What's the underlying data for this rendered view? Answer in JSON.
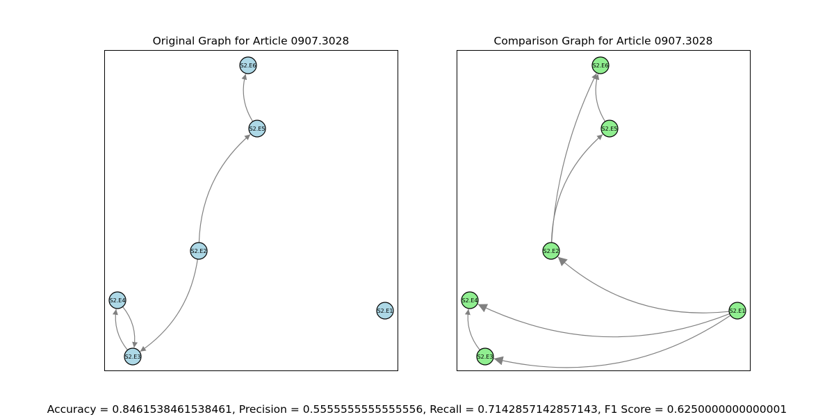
{
  "graphs": [
    {
      "id": "original",
      "title": "Original Graph for Article 0907.3028",
      "node_color": "#add8e6",
      "edge_color": "#808080",
      "nodes": [
        {
          "id": "S2.E1",
          "label": "S2.E1"
        },
        {
          "id": "S2.E2",
          "label": "S2.E2"
        },
        {
          "id": "S2.E3",
          "label": "S2.E3"
        },
        {
          "id": "S2.E4",
          "label": "S2.E4"
        },
        {
          "id": "S2.E5",
          "label": "S2.E5"
        },
        {
          "id": "S2.E6",
          "label": "S2.E6"
        }
      ],
      "edges": [
        {
          "source": "S2.E2",
          "target": "S2.E5"
        },
        {
          "source": "S2.E5",
          "target": "S2.E6"
        },
        {
          "source": "S2.E2",
          "target": "S2.E3"
        },
        {
          "source": "S2.E3",
          "target": "S2.E4"
        },
        {
          "source": "S2.E4",
          "target": "S2.E3"
        }
      ]
    },
    {
      "id": "comparison",
      "title": "Comparison Graph for Article 0907.3028",
      "node_color": "#90ee90",
      "edge_color": "#808080",
      "nodes": [
        {
          "id": "S2.E1",
          "label": "S2.E1"
        },
        {
          "id": "S2.E2",
          "label": "S2.E2"
        },
        {
          "id": "S2.E3",
          "label": "S2.E3"
        },
        {
          "id": "S2.E4",
          "label": "S2.E4"
        },
        {
          "id": "S2.E5",
          "label": "S2.E5"
        },
        {
          "id": "S2.E6",
          "label": "S2.E6"
        }
      ],
      "edges": [
        {
          "source": "S2.E2",
          "target": "S2.E6"
        },
        {
          "source": "S2.E2",
          "target": "S2.E5"
        },
        {
          "source": "S2.E5",
          "target": "S2.E6"
        },
        {
          "source": "S2.E1",
          "target": "S2.E2"
        },
        {
          "source": "S2.E1",
          "target": "S2.E4"
        },
        {
          "source": "S2.E1",
          "target": "S2.E3"
        },
        {
          "source": "S2.E3",
          "target": "S2.E4"
        }
      ]
    }
  ],
  "metrics_text": "Accuracy = 0.8461538461538461, Precision = 0.5555555555555556, Recall = 0.7142857142857143, F1 Score = 0.6250000000000001"
}
